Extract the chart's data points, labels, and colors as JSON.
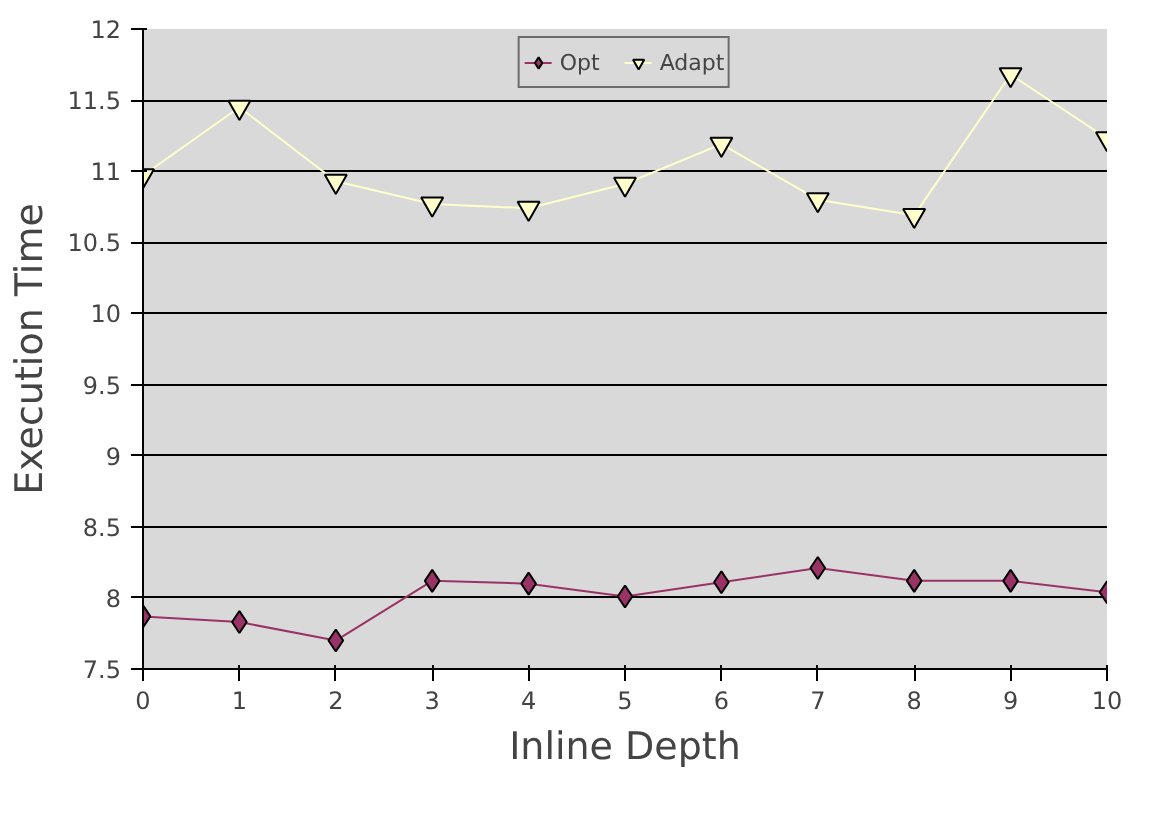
{
  "chart_data": {
    "type": "line",
    "xlabel": "Inline Depth",
    "ylabel": "Execution Time",
    "x": [
      0,
      1,
      2,
      3,
      4,
      5,
      6,
      7,
      8,
      9,
      10
    ],
    "series": [
      {
        "name": "Opt",
        "color": "#993366",
        "marker": "diamond",
        "values": [
          7.87,
          7.83,
          7.7,
          8.12,
          8.1,
          8.01,
          8.11,
          8.21,
          8.12,
          8.12,
          8.04
        ]
      },
      {
        "name": "Adapt",
        "color": "#ffffcc",
        "marker": "triangle",
        "values": [
          10.97,
          11.45,
          10.93,
          10.77,
          10.74,
          10.91,
          11.19,
          10.8,
          10.69,
          11.68,
          11.23
        ]
      }
    ],
    "xlim": [
      0,
      10
    ],
    "xticks": [
      0,
      1,
      2,
      3,
      4,
      5,
      6,
      7,
      8,
      9,
      10
    ],
    "ylim": [
      7.5,
      12
    ],
    "yticks": [
      7.5,
      8,
      8.5,
      9,
      9.5,
      10,
      10.5,
      11,
      11.5,
      12
    ],
    "grid": "y",
    "legend": "top"
  }
}
